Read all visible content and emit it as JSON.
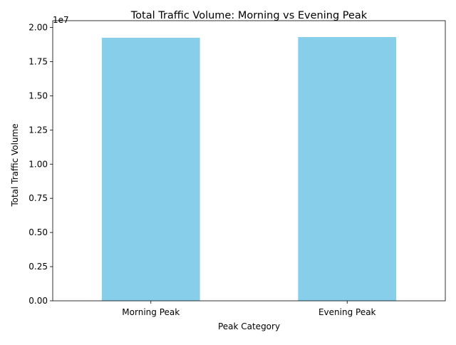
{
  "chart_data": {
    "type": "bar",
    "title": "Total Traffic Volume: Morning vs Evening Peak",
    "xlabel": "Peak Category",
    "ylabel": "Total Traffic Volume",
    "categories": [
      "Morning Peak",
      "Evening Peak"
    ],
    "values": [
      19250000,
      19300000
    ],
    "ylim": [
      0,
      20500000
    ],
    "y_offset_label": "1e7",
    "y_ticks": [
      {
        "value": 0,
        "label": "0.00"
      },
      {
        "value": 2500000,
        "label": "0.25"
      },
      {
        "value": 5000000,
        "label": "0.50"
      },
      {
        "value": 7500000,
        "label": "0.75"
      },
      {
        "value": 10000000,
        "label": "1.00"
      },
      {
        "value": 12500000,
        "label": "1.25"
      },
      {
        "value": 15000000,
        "label": "1.50"
      },
      {
        "value": 17500000,
        "label": "1.75"
      },
      {
        "value": 20000000,
        "label": "2.00"
      }
    ],
    "bar_color": "#87ceeb",
    "grid": false,
    "legend": "none"
  }
}
